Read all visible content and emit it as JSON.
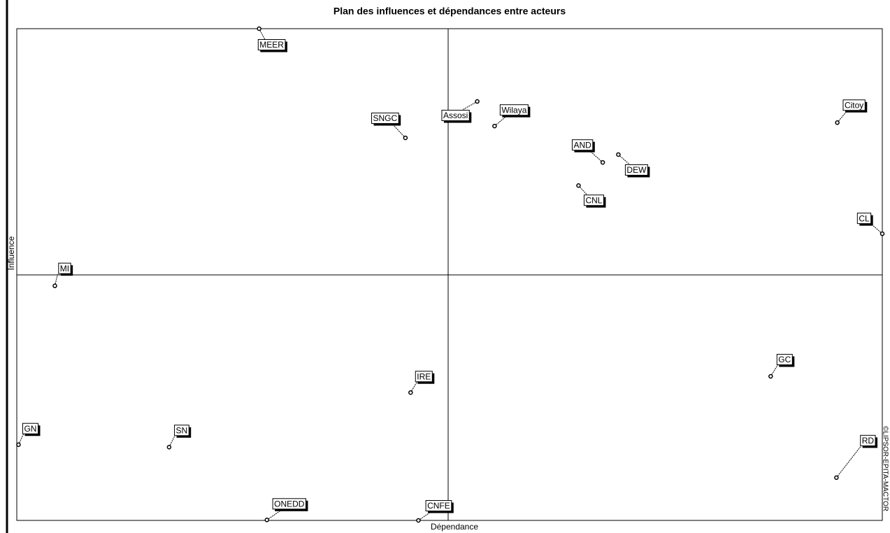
{
  "chart_data": {
    "type": "scatter",
    "title": "Plan des influences et dépendances entre acteurs",
    "x_label": "Dépendance",
    "y_label": "Influence",
    "credit": "©LIPSOR-EPITA-MACTOR",
    "xlim": [
      0,
      100
    ],
    "ylim": [
      0,
      100
    ],
    "color": "#000000",
    "labels": [
      "MEER",
      "SNGC",
      "Assosi",
      "Wilaya",
      "Citoy",
      "AND",
      "DEW",
      "CNL",
      "CL",
      "MI",
      "GC",
      "IRE",
      "GN",
      "SN",
      "RD",
      "ONEDD",
      "CNFE"
    ],
    "x": [
      28,
      44.9,
      53.2,
      55.2,
      94.8,
      67.7,
      69.5,
      64.9,
      100,
      4.4,
      87.1,
      45.5,
      0.2,
      17.6,
      94.7,
      28.9,
      46.4
    ],
    "values": [
      100,
      77.8,
      85.2,
      80.2,
      80.9,
      72.8,
      74.4,
      68.1,
      58.3,
      47.7,
      29.3,
      26,
      15.4,
      14.9,
      8.7,
      0.1,
      0
    ]
  }
}
